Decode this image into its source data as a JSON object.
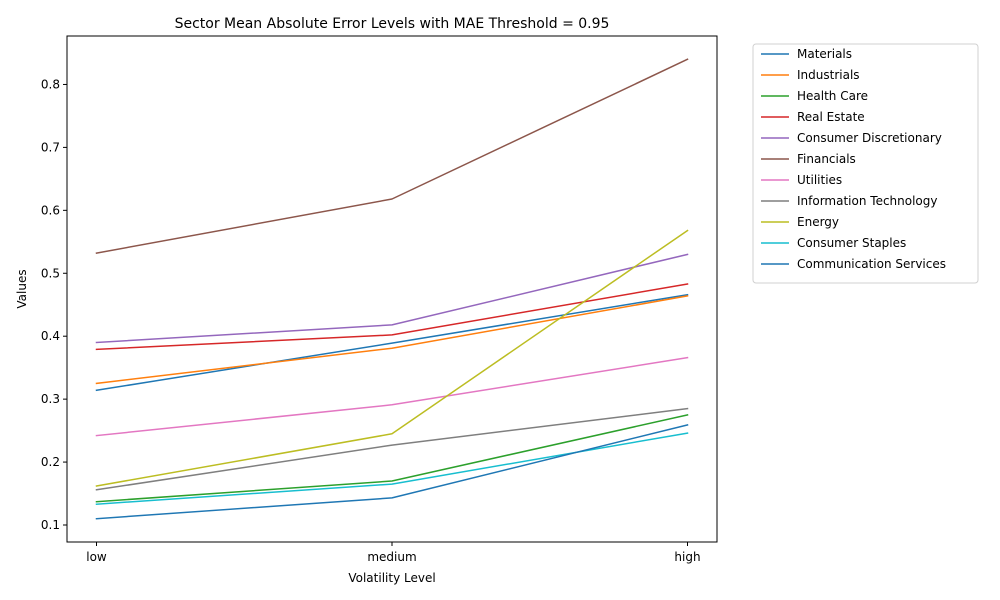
{
  "chart_data": {
    "type": "line",
    "title": "Sector Mean Absolute Error Levels with MAE Threshold = 0.95",
    "xlabel": "Volatility Level",
    "ylabel": "Values",
    "categories": [
      "low",
      "medium",
      "high"
    ],
    "ylim": [
      0.073,
      0.877
    ],
    "yticks": [
      "0.1",
      "0.2",
      "0.3",
      "0.4",
      "0.5",
      "0.6",
      "0.7",
      "0.8"
    ],
    "grid": false,
    "legend_position": "outside-top-right",
    "series": [
      {
        "name": "Materials",
        "color": "#1f77b4",
        "values": [
          0.314,
          0.389,
          0.466
        ]
      },
      {
        "name": "Industrials",
        "color": "#ff7f0e",
        "values": [
          0.325,
          0.381,
          0.464
        ]
      },
      {
        "name": "Health Care",
        "color": "#2ca02c",
        "values": [
          0.137,
          0.17,
          0.275
        ]
      },
      {
        "name": "Real Estate",
        "color": "#d62728",
        "values": [
          0.379,
          0.402,
          0.483
        ]
      },
      {
        "name": "Consumer Discretionary",
        "color": "#9467bd",
        "values": [
          0.39,
          0.418,
          0.53
        ]
      },
      {
        "name": "Financials",
        "color": "#8c564b",
        "values": [
          0.532,
          0.618,
          0.84
        ]
      },
      {
        "name": "Utilities",
        "color": "#e377c2",
        "values": [
          0.242,
          0.291,
          0.366
        ]
      },
      {
        "name": "Information Technology",
        "color": "#7f7f7f",
        "values": [
          0.156,
          0.227,
          0.285
        ]
      },
      {
        "name": "Energy",
        "color": "#bcbd22",
        "values": [
          0.162,
          0.245,
          0.568
        ]
      },
      {
        "name": "Consumer Staples",
        "color": "#17becf",
        "values": [
          0.133,
          0.165,
          0.246
        ]
      },
      {
        "name": "Communication Services",
        "color": "#1f77b4",
        "values": [
          0.11,
          0.143,
          0.259
        ]
      }
    ]
  }
}
